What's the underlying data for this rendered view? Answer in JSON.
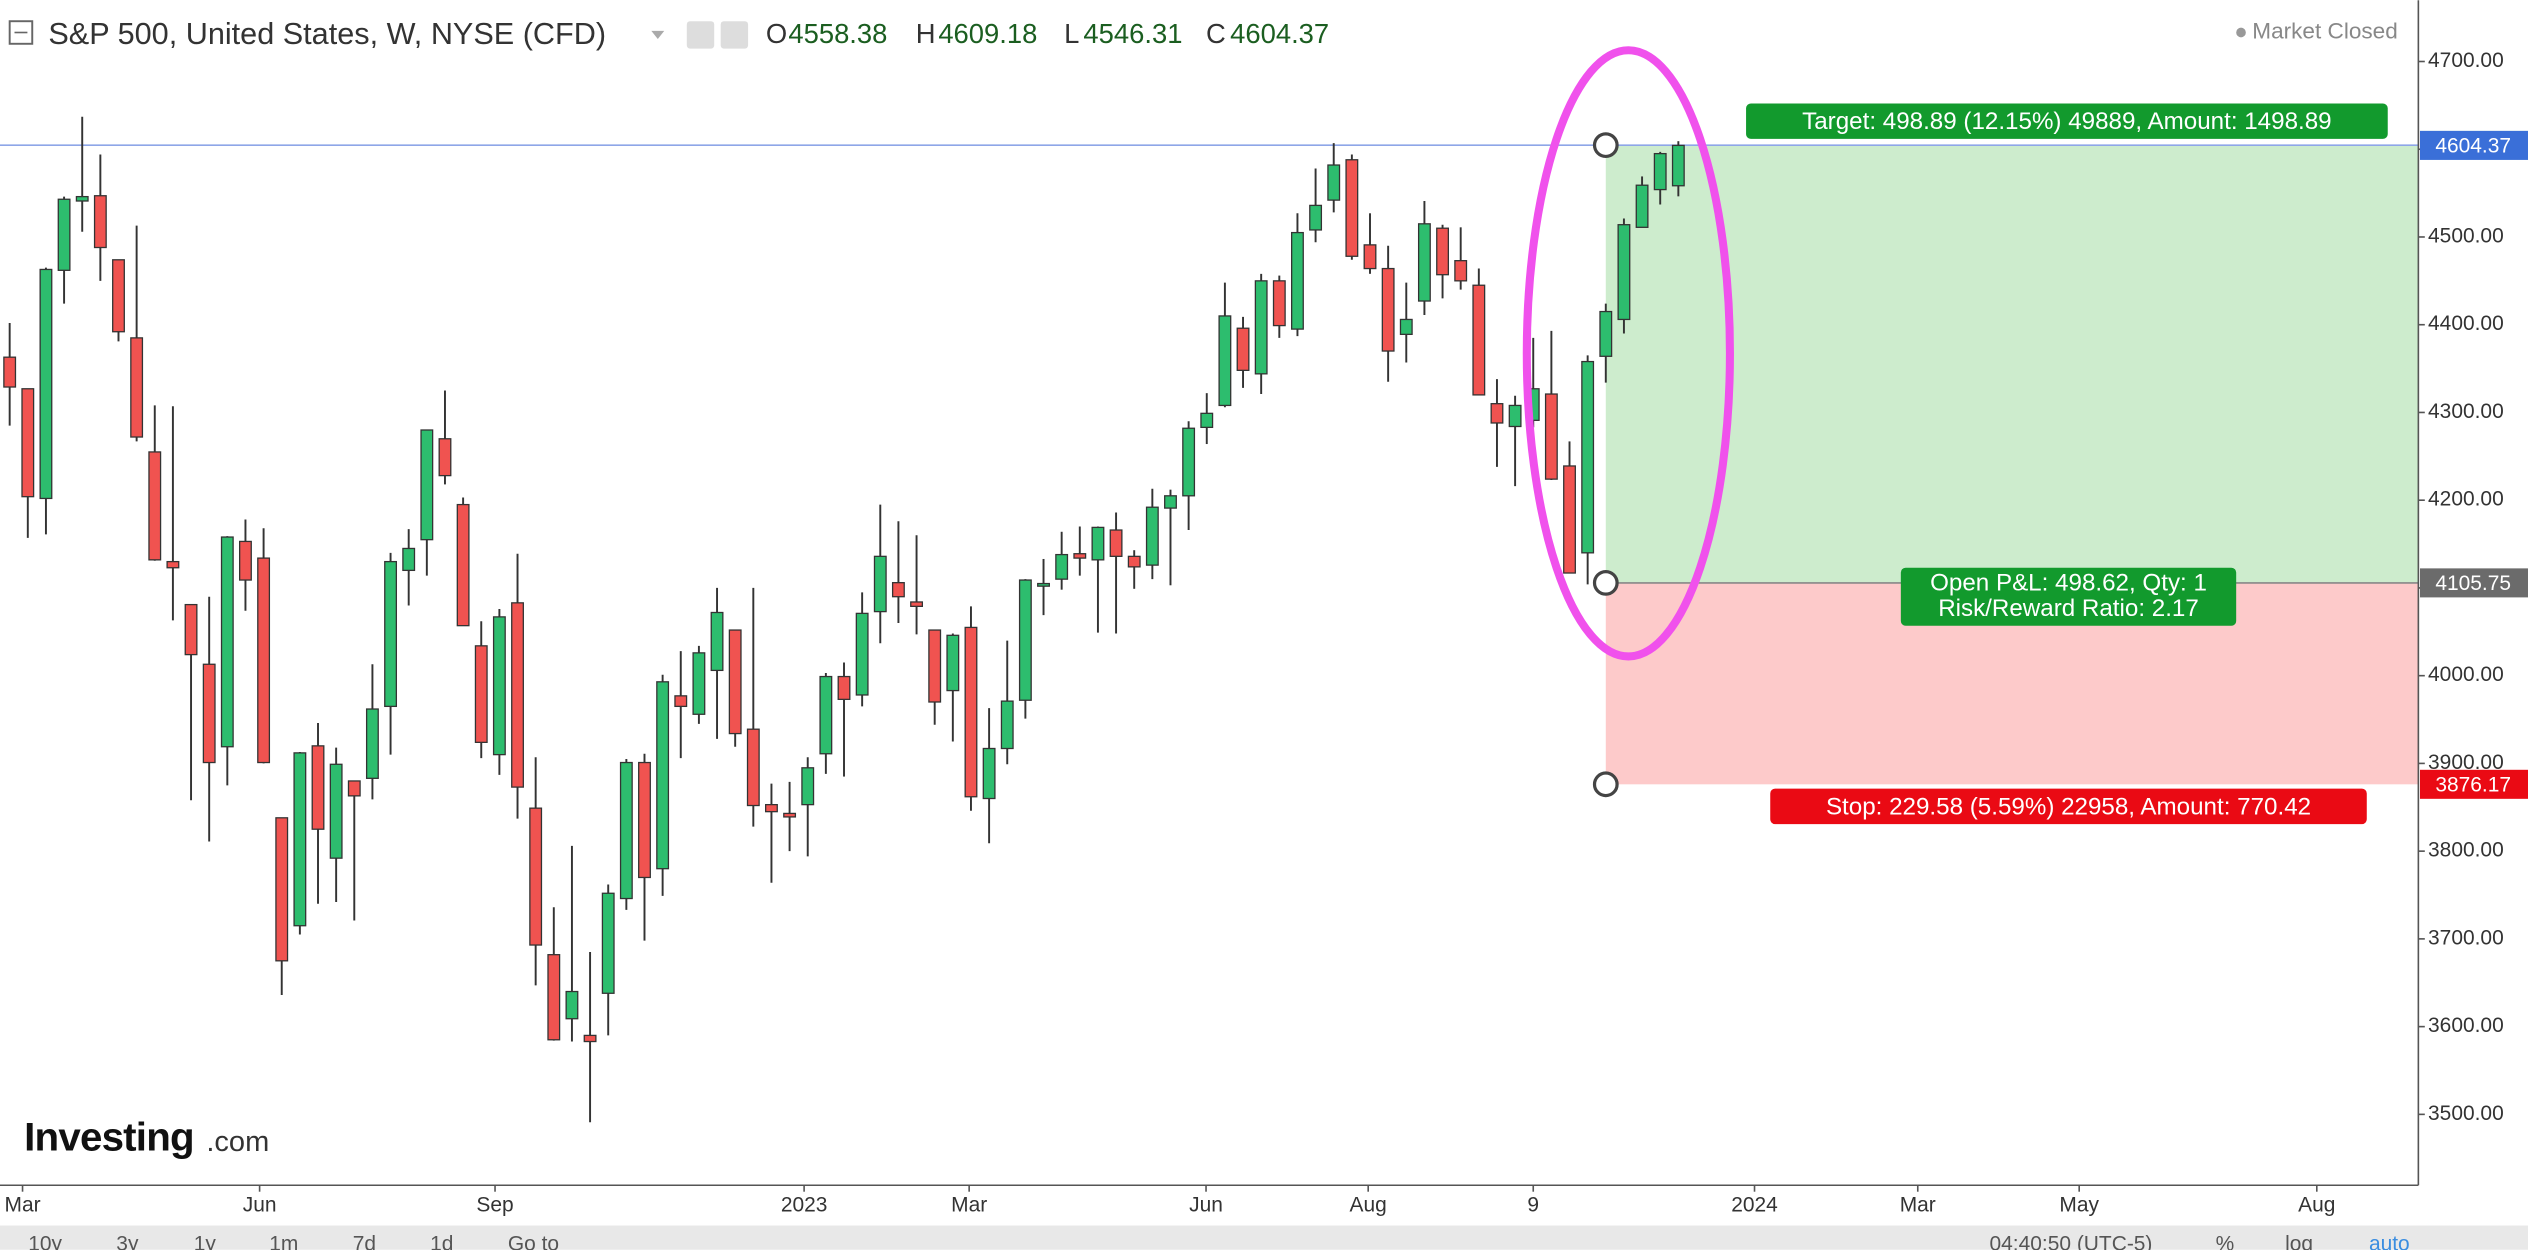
{
  "chart_data": {
    "type": "candlestick",
    "title": "S&P 500, United States, W, NYSE (CFD)",
    "status": "Market Closed",
    "ohlc": [
      {
        "label": "O",
        "value": 4558.38
      },
      {
        "label": "H",
        "value": 4609.18
      },
      {
        "label": "L",
        "value": 4546.31
      },
      {
        "label": "C",
        "value": 4604.37
      }
    ],
    "categories": [
      null,
      null,
      null,
      null,
      null,
      null,
      null,
      null,
      null,
      null,
      null,
      null,
      null,
      null,
      null,
      null,
      null,
      null,
      null,
      null,
      null,
      null,
      null,
      null,
      null,
      null,
      null,
      null,
      null,
      null,
      null,
      null,
      null,
      null,
      null,
      null,
      null,
      null,
      null,
      null,
      null,
      null,
      null,
      null,
      null,
      null,
      null,
      null,
      null,
      null,
      null,
      null,
      null,
      null,
      null,
      null,
      null,
      null,
      null,
      null,
      null,
      null,
      null,
      null,
      null,
      null,
      null,
      null,
      null,
      null,
      null,
      null,
      null,
      null,
      null,
      null,
      null,
      null,
      null,
      null,
      null,
      null,
      null,
      null,
      null,
      null,
      null,
      null,
      null,
      null,
      null,
      null,
      null
    ],
    "series": [
      {
        "up_color": "#2dbd6e",
        "down_color": "#f05350",
        "open": [
          4363,
          4327,
          4202,
          4462,
          4541,
          4547,
          4474,
          4385,
          4255,
          4130,
          4081,
          4013,
          3919,
          4153,
          4134,
          3838,
          3715,
          3920,
          3792,
          3880,
          3883,
          3965,
          4120,
          4155,
          4270,
          4195,
          4034,
          3910,
          4083,
          3849,
          3682,
          3609,
          3590,
          3638,
          3746,
          3901,
          3780,
          3977,
          3956,
          4006,
          4052,
          3939,
          3853,
          3843,
          3853,
          3911,
          3999,
          3978,
          4073,
          4106,
          4084,
          4052,
          3983,
          4055,
          3860,
          3917,
          3972,
          4102,
          4110,
          4139,
          4132,
          4166,
          4136,
          4126,
          4191,
          4205,
          4283,
          4308,
          4396,
          4344,
          4450,
          4395,
          4508,
          4542,
          4588,
          4491,
          4464,
          4389,
          4427,
          4510,
          4473,
          4445,
          4310,
          4284,
          4291,
          4321,
          4239,
          4140,
          4364,
          4406,
          4511,
          4554,
          4558.38
        ],
        "high": [
          4402,
          4327,
          4465,
          4546,
          4637,
          4594,
          4471,
          4513,
          4308,
          4307,
          4081,
          4090,
          4159,
          4178,
          4168,
          3838,
          3913,
          3946,
          3918,
          3880,
          4013,
          4140,
          4167,
          4280,
          4325,
          4203,
          4062,
          4076,
          4139,
          3907,
          3736,
          3806,
          3685,
          3762,
          3905,
          3911,
          4001,
          4028,
          4034,
          4100,
          4052,
          4100,
          3877,
          3879,
          3907,
          4003,
          4015,
          4095,
          4195,
          4176,
          4160,
          4052,
          4048,
          4079,
          3963,
          4040,
          4110,
          4133,
          4164,
          4170,
          4170,
          4186,
          4143,
          4213,
          4212,
          4290,
          4322,
          4448,
          4409,
          4458,
          4456,
          4527,
          4578,
          4607,
          4594,
          4527,
          4490,
          4448,
          4541,
          4514,
          4511,
          4464,
          4338,
          4319,
          4385,
          4393,
          4267,
          4365,
          4424,
          4521,
          4569,
          4597,
          4609.18
        ],
        "low": [
          4285,
          4157,
          4161,
          4424,
          4506,
          4450,
          4381,
          4267,
          4131,
          4063,
          3858,
          3811,
          3875,
          4074,
          3900,
          3636,
          3705,
          3740,
          3742,
          3721,
          3859,
          3910,
          4080,
          4114,
          4218,
          4057,
          3906,
          3887,
          3837,
          3647,
          3584,
          3583,
          3491,
          3590,
          3733,
          3698,
          3749,
          3906,
          3945,
          3928,
          3919,
          3828,
          3764,
          3800,
          3794,
          3888,
          3885,
          3965,
          4037,
          4060,
          4047,
          3944,
          3925,
          3846,
          3809,
          3899,
          3951,
          4069,
          4098,
          4114,
          4049,
          4048,
          4099,
          4110,
          4103,
          4166,
          4264,
          4306,
          4328,
          4321,
          4385,
          4387,
          4494,
          4528,
          4474,
          4458,
          4335,
          4357,
          4411,
          4430,
          4440,
          4320,
          4238,
          4216,
          4283,
          4223,
          4128,
          4104,
          4334,
          4390,
          4511,
          4537,
          4546.31
        ],
        "close": [
          4329,
          4204,
          4463,
          4543,
          4546,
          4488,
          4392,
          4272,
          4132,
          4123,
          4024,
          3901,
          4158,
          4109,
          3901,
          3675,
          3912,
          3825,
          3899,
          3863,
          3962,
          4130,
          4145,
          4280,
          4228,
          4057,
          3924,
          4067,
          3873,
          3693,
          3585,
          3640,
          3583,
          3752,
          3901,
          3770,
          3993,
          3965,
          4026,
          4072,
          3934,
          3852,
          3845,
          3839,
          3895,
          3999,
          3973,
          4071,
          4136,
          4090,
          4079,
          3970,
          4046,
          3862,
          3917,
          3971,
          4109,
          4105,
          4138,
          4134,
          4169,
          4136,
          4124,
          4192,
          4205,
          4282,
          4299,
          4410,
          4348,
          4450,
          4399,
          4505,
          4536,
          4582,
          4478,
          4464,
          4370,
          4406,
          4515,
          4457,
          4450,
          4320,
          4288,
          4308,
          4327,
          4224,
          4117,
          4358,
          4415,
          4514,
          4559,
          4595,
          4604.37
        ]
      }
    ],
    "xlim": [
      -0.533,
      132.8
    ],
    "xticks": [
      {
        "value": 0.71,
        "label": "Mar"
      },
      {
        "value": 13.78,
        "label": "Jun"
      },
      {
        "value": 26.76,
        "label": "Sep"
      },
      {
        "value": 43.8,
        "label": "2023"
      },
      {
        "value": 52.9,
        "label": "Mar"
      },
      {
        "value": 65.96,
        "label": "Jun"
      },
      {
        "value": 74.9,
        "label": "Aug"
      },
      {
        "value": 84.0,
        "label": "9"
      },
      {
        "value": 96.2,
        "label": "2024"
      },
      {
        "value": 105.2,
        "label": "Mar"
      },
      {
        "value": 114.1,
        "label": "May"
      },
      {
        "value": 127.2,
        "label": "Aug"
      }
    ],
    "ylim": [
      3419.2,
      4769.8
    ],
    "yticks": [
      {
        "value": 3500,
        "label": "3500.00"
      },
      {
        "value": 3600,
        "label": "3600.00"
      },
      {
        "value": 3700,
        "label": "3700.00"
      },
      {
        "value": 3800,
        "label": "3800.00"
      },
      {
        "value": 3900,
        "label": "3900.00"
      },
      {
        "value": 4000,
        "label": "4000.00"
      },
      {
        "value": 4100,
        "label": "4100.00"
      },
      {
        "value": 4200,
        "label": "4200.00"
      },
      {
        "value": 4300,
        "label": "4300.00"
      },
      {
        "value": 4400,
        "label": "4400.00"
      },
      {
        "value": 4500,
        "label": "4500.00"
      },
      {
        "value": 4600,
        "label": "4600.00"
      },
      {
        "value": 4700,
        "label": "4700.00"
      }
    ],
    "last_price": 4604.37,
    "position": {
      "start_index": 88,
      "entry": 4105.75,
      "target": 4604.64,
      "stop": 3876.17,
      "target_label": "Target: 498.89 (12.15%) 49889, Amount: 1498.89",
      "pnl_label": [
        "Open P&L: 498.62, Qty: 1",
        "Risk/Reward Ratio: 2.17"
      ],
      "stop_label": "Stop: 229.58 (5.59%) 22958, Amount: 770.42"
    },
    "watermark": [
      "Investing",
      ".com"
    ]
  },
  "toolbar": {
    "ranges": [
      "10y",
      "3y",
      "1y",
      "1m",
      "7d",
      "1d"
    ],
    "goto": "Go to",
    "time": "04:40:50 (UTC-5)",
    "options": [
      "%",
      "log",
      "auto"
    ]
  }
}
